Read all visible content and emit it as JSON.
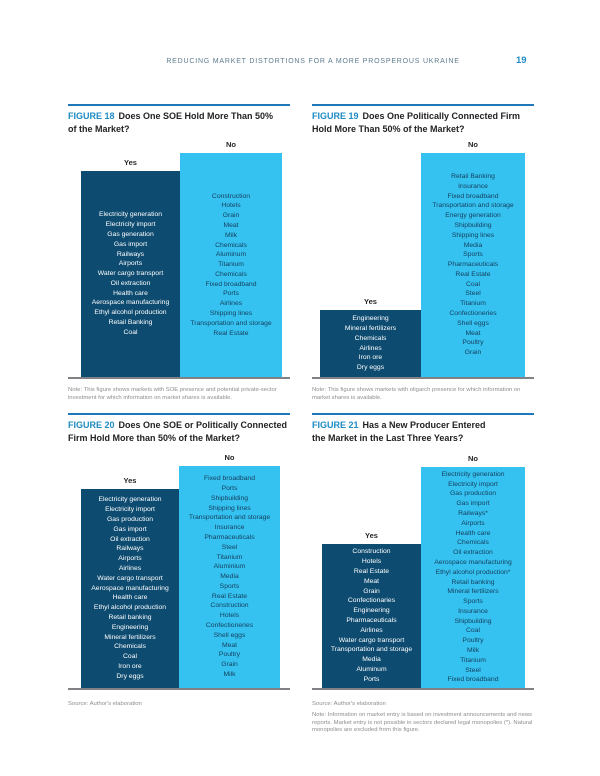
{
  "header": {
    "running_title": "REDUCING MARKET DISTORTIONS FOR A MORE PROSPEROUS UKRAINE",
    "page_number": "19"
  },
  "labels": {
    "yes": "Yes",
    "no": "No"
  },
  "colors": {
    "yes_box": "#0d4b70",
    "no_box": "#35c2f0",
    "accent_blue": "#1e8bc3",
    "rule_blue": "#1f78ba",
    "baseline_gray": "#808285"
  },
  "chart_data": [
    {
      "type": "categorical_comparison",
      "figure_label": "FIGURE 18",
      "title": "Does One SOE Hold More Than 50%\nof the Market?",
      "categories": [
        "Yes",
        "No"
      ],
      "yes": [
        "Electricity generation",
        "Electricity import",
        "Gas generation",
        "Gas import",
        "Railways",
        "Airports",
        "Water cargo transport",
        "Oil extraction",
        "Health care",
        "Aerospace manufacturing",
        "Ethyl alcohol production",
        "Retail Banking",
        "Coal"
      ],
      "no": [
        "Construction",
        "Hotels",
        "Grain",
        "Meat",
        "Milk",
        "Chemicals",
        "Aluminum",
        "Titanium",
        "Chemicals",
        "Fixed broadband",
        "Ports",
        "Airlines",
        "Shipping lines",
        "Transportation and storage",
        "Real Estate"
      ],
      "note": "Note: This figure shows markets with SOE presence and potential private-sector investment for which information on market shares is available."
    },
    {
      "type": "categorical_comparison",
      "figure_label": "FIGURE 19",
      "title": "Does One Politically Connected Firm\nHold More Than 50% of the Market?",
      "categories": [
        "Yes",
        "No"
      ],
      "yes": [
        "Engineering",
        "Mineral fertilizers",
        "Chemicals",
        "Airlines",
        "Iron ore",
        "Dry eggs"
      ],
      "no": [
        "Retail Banking",
        "Insurance",
        "Fixed broadband",
        "Transportation and storage",
        "Energy generation",
        "Shipbuilding",
        "Shipping lines",
        "Media",
        "Sports",
        "Pharmaceuticals",
        "Real Estate",
        "Coal",
        "Steel",
        "Titanium",
        "Confectioneries",
        "Shell eggs",
        "Meat",
        "Poultry",
        "Grain"
      ],
      "note": "Note: This figure shows markets with oligarch presence for which information on market shares is available."
    },
    {
      "type": "categorical_comparison",
      "figure_label": "FIGURE 20",
      "title": "Does One SOE or Politically Connected\nFirm Hold More than 50% of the Market?",
      "categories": [
        "Yes",
        "No"
      ],
      "yes": [
        "Electricity generation",
        "Electricity import",
        "Gas production",
        "Gas import",
        "Oil extraction",
        "Railways",
        "Airports",
        "Airlines",
        "Water cargo transport",
        "Aerospace manufacturing",
        "Health care",
        "Ethyl alcohol production",
        "Retail banking",
        "Engineering",
        "Mineral fertilizers",
        "Chemicals",
        "Coal",
        "Iron ore",
        "Dry eggs"
      ],
      "no": [
        "Fixed broadband",
        "Ports",
        "Shipbuilding",
        "Shipping lines",
        "Transportation and storage",
        "Insurance",
        "Pharmaceuticals",
        "Steel",
        "Titanium",
        "Aluminium",
        "Media",
        "Sports",
        "Real Estate",
        "Construction",
        "Hotels",
        "Confectioneries",
        "Shell eggs",
        "Meat",
        "Poultry",
        "Grain",
        "Milk"
      ],
      "source": "Source: Author's elaboration"
    },
    {
      "type": "categorical_comparison",
      "figure_label": "FIGURE 21",
      "title": "Has a New Producer Entered\nthe Market in the Last Three Years?",
      "categories": [
        "Yes",
        "No"
      ],
      "yes": [
        "Construction",
        "Hotels",
        "Real Estate",
        "Meat",
        "Grain",
        "Confectionaries",
        "Engineering",
        "Pharmaceuticals",
        "Airlines",
        "Water cargo transport",
        "Transportation and storage",
        "Media",
        "Aluminum",
        "Ports"
      ],
      "no": [
        "Electricity generation",
        "Electricity import",
        "Gas production",
        "Gas import",
        "Railways*",
        "Airports",
        "Health care",
        "Chemicals",
        "Oil extraction",
        "Aerospace manufacturing",
        "Ethyl alcohol production*",
        "Retail banking",
        "Mineral fertilizers",
        "Sports",
        "Insurance",
        "Shipbuilding",
        "Coal",
        "Poultry",
        "Milk",
        "Titanium",
        "Steel",
        "Fixed broadband"
      ],
      "source": "Source: Author's elaboration",
      "note": "Note: Information on market entry is based on investment announcements and news reports. Market entry is not possible in sectors declared legal monopolies (*). Natural monopolies are excluded from this figure."
    }
  ]
}
